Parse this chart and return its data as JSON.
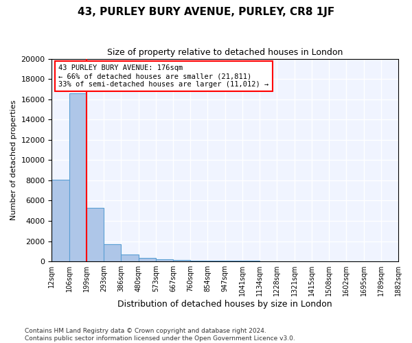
{
  "title": "43, PURLEY BURY AVENUE, PURLEY, CR8 1JF",
  "subtitle": "Size of property relative to detached houses in London",
  "xlabel": "Distribution of detached houses by size in London",
  "ylabel": "Number of detached properties",
  "bar_color": "#aec6e8",
  "bar_edge_color": "#5a9fd4",
  "background_color": "#f0f4ff",
  "grid_color": "white",
  "tick_labels": [
    "12sqm",
    "106sqm",
    "199sqm",
    "293sqm",
    "386sqm",
    "480sqm",
    "573sqm",
    "667sqm",
    "760sqm",
    "854sqm",
    "947sqm",
    "1041sqm",
    "1134sqm",
    "1228sqm",
    "1321sqm",
    "1415sqm",
    "1508sqm",
    "1602sqm",
    "1695sqm",
    "1789sqm",
    "1882sqm"
  ],
  "values": [
    8050,
    16600,
    5300,
    1700,
    650,
    350,
    220,
    140,
    100,
    75,
    55,
    45,
    35,
    25,
    18,
    12,
    8,
    6,
    4,
    3
  ],
  "n_bars": 20,
  "ylim": [
    0,
    20000
  ],
  "yticks": [
    0,
    2000,
    4000,
    6000,
    8000,
    10000,
    12000,
    14000,
    16000,
    18000,
    20000
  ],
  "annotation_text": "43 PURLEY BURY AVENUE: 176sqm\n← 66% of detached houses are smaller (21,811)\n33% of semi-detached houses are larger (11,012) →",
  "vline_color": "red",
  "footer_line1": "Contains HM Land Registry data © Crown copyright and database right 2024.",
  "footer_line2": "Contains public sector information licensed under the Open Government Licence v3.0."
}
